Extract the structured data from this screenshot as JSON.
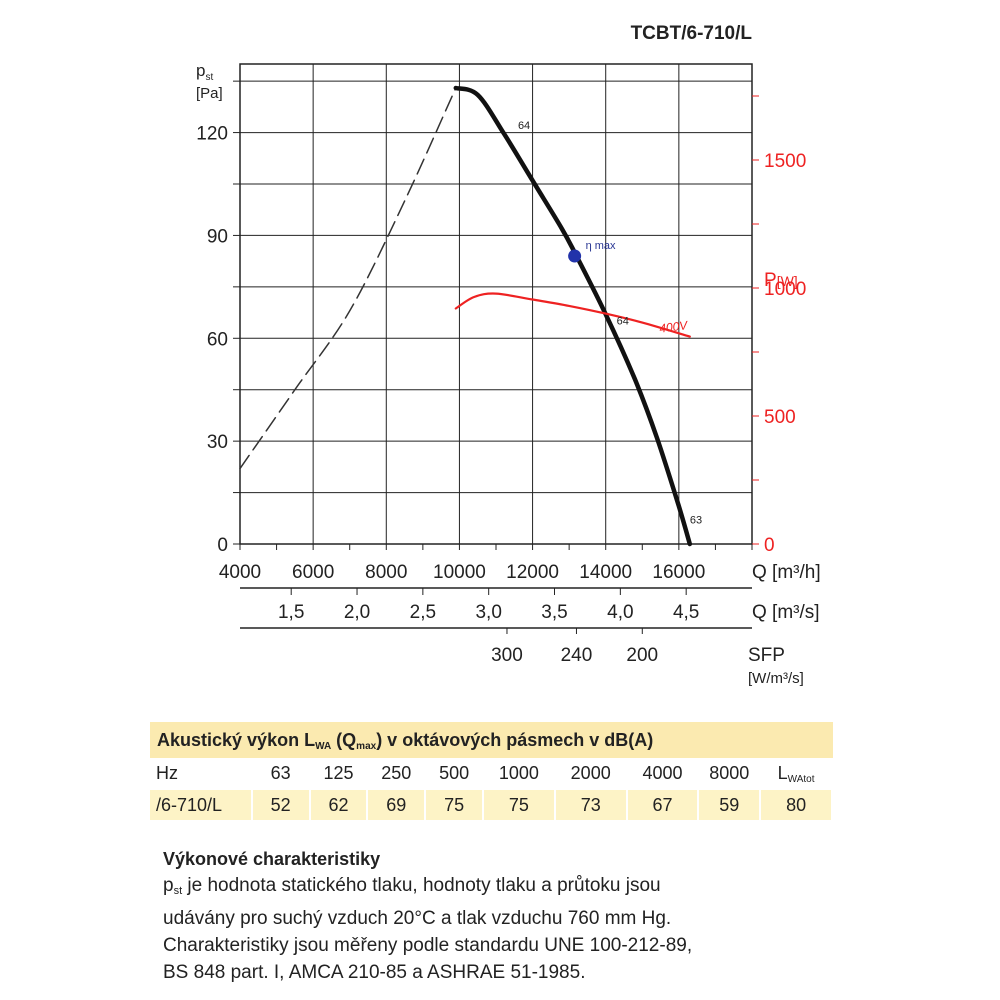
{
  "model_title": "TCBT/6-710/L",
  "chart_data": {
    "type": "line",
    "title": "TCBT/6-710/L",
    "y_axis": {
      "label": "p",
      "label_sub": "st",
      "unit": "[Pa]",
      "min": 0,
      "max": 140,
      "ticks": [
        0,
        30,
        60,
        90,
        120
      ],
      "tick_labels": [
        "0",
        "30",
        "60",
        "90",
        "120"
      ]
    },
    "y2_axis": {
      "label": "P",
      "unit": "[W]",
      "color": "#ee2222",
      "min": 0,
      "max": 1875,
      "ticks": [
        0,
        500,
        1000,
        1500
      ],
      "tick_labels": [
        "0",
        "500",
        "1000",
        "1500"
      ]
    },
    "x_axis_m3h": {
      "label": "Q [m³/h]",
      "min": 4000,
      "max": 18000,
      "ticks": [
        4000,
        6000,
        8000,
        10000,
        12000,
        14000,
        16000
      ],
      "tick_labels": [
        "4000",
        "6000",
        "8000",
        "10000",
        "12000",
        "14000",
        "16000"
      ]
    },
    "x_axis_m3s": {
      "label": "Q [m³/s]",
      "ticks": [
        1.5,
        2.0,
        2.5,
        3.0,
        3.5,
        4.0,
        4.5
      ],
      "tick_labels": [
        "1,5",
        "2,0",
        "2,5",
        "3,0",
        "3,5",
        "4,0",
        "4,5"
      ]
    },
    "sfp_axis": {
      "label": "SFP",
      "unit": "[W/m³/s]",
      "ticks_m3h": [
        11300,
        13200,
        15000
      ],
      "tick_labels": [
        "300",
        "240",
        "200"
      ]
    },
    "grid": true,
    "series": [
      {
        "style": "dashed",
        "color": "#333333",
        "x": [
          4000,
          5500,
          7000,
          8500,
          9900
        ],
        "y": [
          22,
          45,
          68,
          100,
          133
        ]
      },
      {
        "style": "solid-thick",
        "color": "#111111",
        "x": [
          9900,
          10500,
          11200,
          12000,
          12800,
          13200,
          14000,
          14800,
          15400,
          16000,
          16300
        ],
        "y": [
          133,
          131,
          120,
          106,
          92,
          84,
          67,
          48,
          31,
          11,
          0
        ]
      },
      {
        "name": "400V",
        "axis": "y2",
        "style": "solid",
        "color": "#ee2222",
        "x": [
          9900,
          10400,
          11000,
          12000,
          13000,
          14000,
          15000,
          16300
        ],
        "y": [
          920,
          965,
          978,
          955,
          930,
          900,
          865,
          810
        ]
      }
    ],
    "annotations": [
      {
        "text": "64",
        "x": 11600,
        "y": 121
      },
      {
        "text": "η max",
        "x": 13450,
        "y": 86,
        "color": "#283593"
      },
      {
        "text": "64",
        "x": 14300,
        "y": 64
      },
      {
        "text": "63",
        "x": 16300,
        "y": 6
      }
    ],
    "markers": [
      {
        "name": "η max",
        "x": 13150,
        "y": 84,
        "color": "#2233aa"
      }
    ]
  },
  "acoustic": {
    "title_pre": "Akustický výkon L",
    "title_sub1": "WA",
    "title_mid": " (Q",
    "title_sub2": "max",
    "title_post": ") v oktávových pásmech v dB(A)",
    "header_label": "Hz",
    "frequencies": [
      "63",
      "125",
      "250",
      "500",
      "1000",
      "2000",
      "4000",
      "8000"
    ],
    "total_header_main": "L",
    "total_header_sub": "WAtot",
    "row_label": "/6-710/L",
    "values": [
      "52",
      "62",
      "69",
      "75",
      "75",
      "73",
      "67",
      "59"
    ],
    "total_value": "80"
  },
  "description": {
    "title": "Výkonové charakteristiky",
    "line1_pre": "p",
    "line1_sub": "st",
    "line1_post": " je hodnota statického tlaku, hodnoty tlaku a průtoku jsou",
    "line2": "udávány pro suchý vzduch 20°C a tlak vzduchu 760 mm Hg.",
    "line3": "Charakteristiky jsou měřeny podle standardu UNE 100-212-89,",
    "line4": "BS 848 part. I, AMCA 210-85 a ASHRAE 51-1985."
  }
}
